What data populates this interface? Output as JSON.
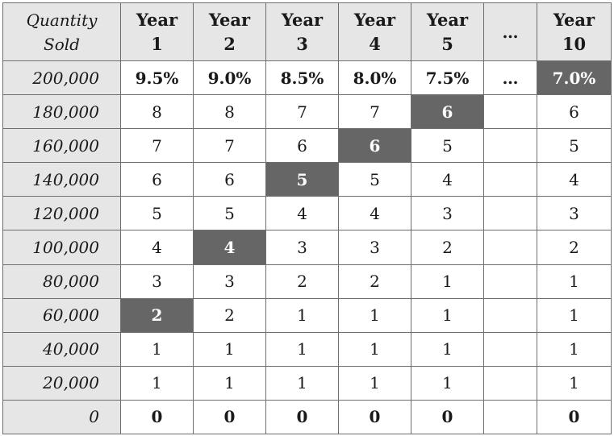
{
  "header": {
    "quantity_line1": "Quantity",
    "quantity_line2": "Sold",
    "years": [
      {
        "line1": "Year",
        "line2": "1"
      },
      {
        "line1": "Year",
        "line2": "2"
      },
      {
        "line1": "Year",
        "line2": "3"
      },
      {
        "line1": "Year",
        "line2": "4"
      },
      {
        "line1": "Year",
        "line2": "5"
      }
    ],
    "ellipsis": "…",
    "last_year": {
      "line1": "Year",
      "line2": "10"
    }
  },
  "rows": [
    {
      "qty": "200,000",
      "values": [
        "9.5%",
        "9.0%",
        "8.5%",
        "8.0%",
        "7.5%"
      ],
      "ellipsis": "…",
      "last": "7.0%"
    },
    {
      "qty": "180,000",
      "values": [
        "8",
        "8",
        "7",
        "7",
        "6"
      ],
      "ellipsis": "",
      "last": "6"
    },
    {
      "qty": "160,000",
      "values": [
        "7",
        "7",
        "6",
        "6",
        "5"
      ],
      "ellipsis": "",
      "last": "5"
    },
    {
      "qty": "140,000",
      "values": [
        "6",
        "6",
        "5",
        "5",
        "4"
      ],
      "ellipsis": "",
      "last": "4"
    },
    {
      "qty": "120,000",
      "values": [
        "5",
        "5",
        "4",
        "4",
        "3"
      ],
      "ellipsis": "",
      "last": "3"
    },
    {
      "qty": "100,000",
      "values": [
        "4",
        "4",
        "3",
        "3",
        "2"
      ],
      "ellipsis": "",
      "last": "2"
    },
    {
      "qty": "80,000",
      "values": [
        "3",
        "3",
        "2",
        "2",
        "1"
      ],
      "ellipsis": "",
      "last": "1"
    },
    {
      "qty": "60,000",
      "values": [
        "2",
        "2",
        "1",
        "1",
        "1"
      ],
      "ellipsis": "",
      "last": "1"
    },
    {
      "qty": "40,000",
      "values": [
        "1",
        "1",
        "1",
        "1",
        "1"
      ],
      "ellipsis": "",
      "last": "1"
    },
    {
      "qty": "20,000",
      "values": [
        "1",
        "1",
        "1",
        "1",
        "1"
      ],
      "ellipsis": "",
      "last": "1"
    },
    {
      "qty": "0",
      "values": [
        "0",
        "0",
        "0",
        "0",
        "0"
      ],
      "ellipsis": "",
      "last": "0"
    }
  ]
}
